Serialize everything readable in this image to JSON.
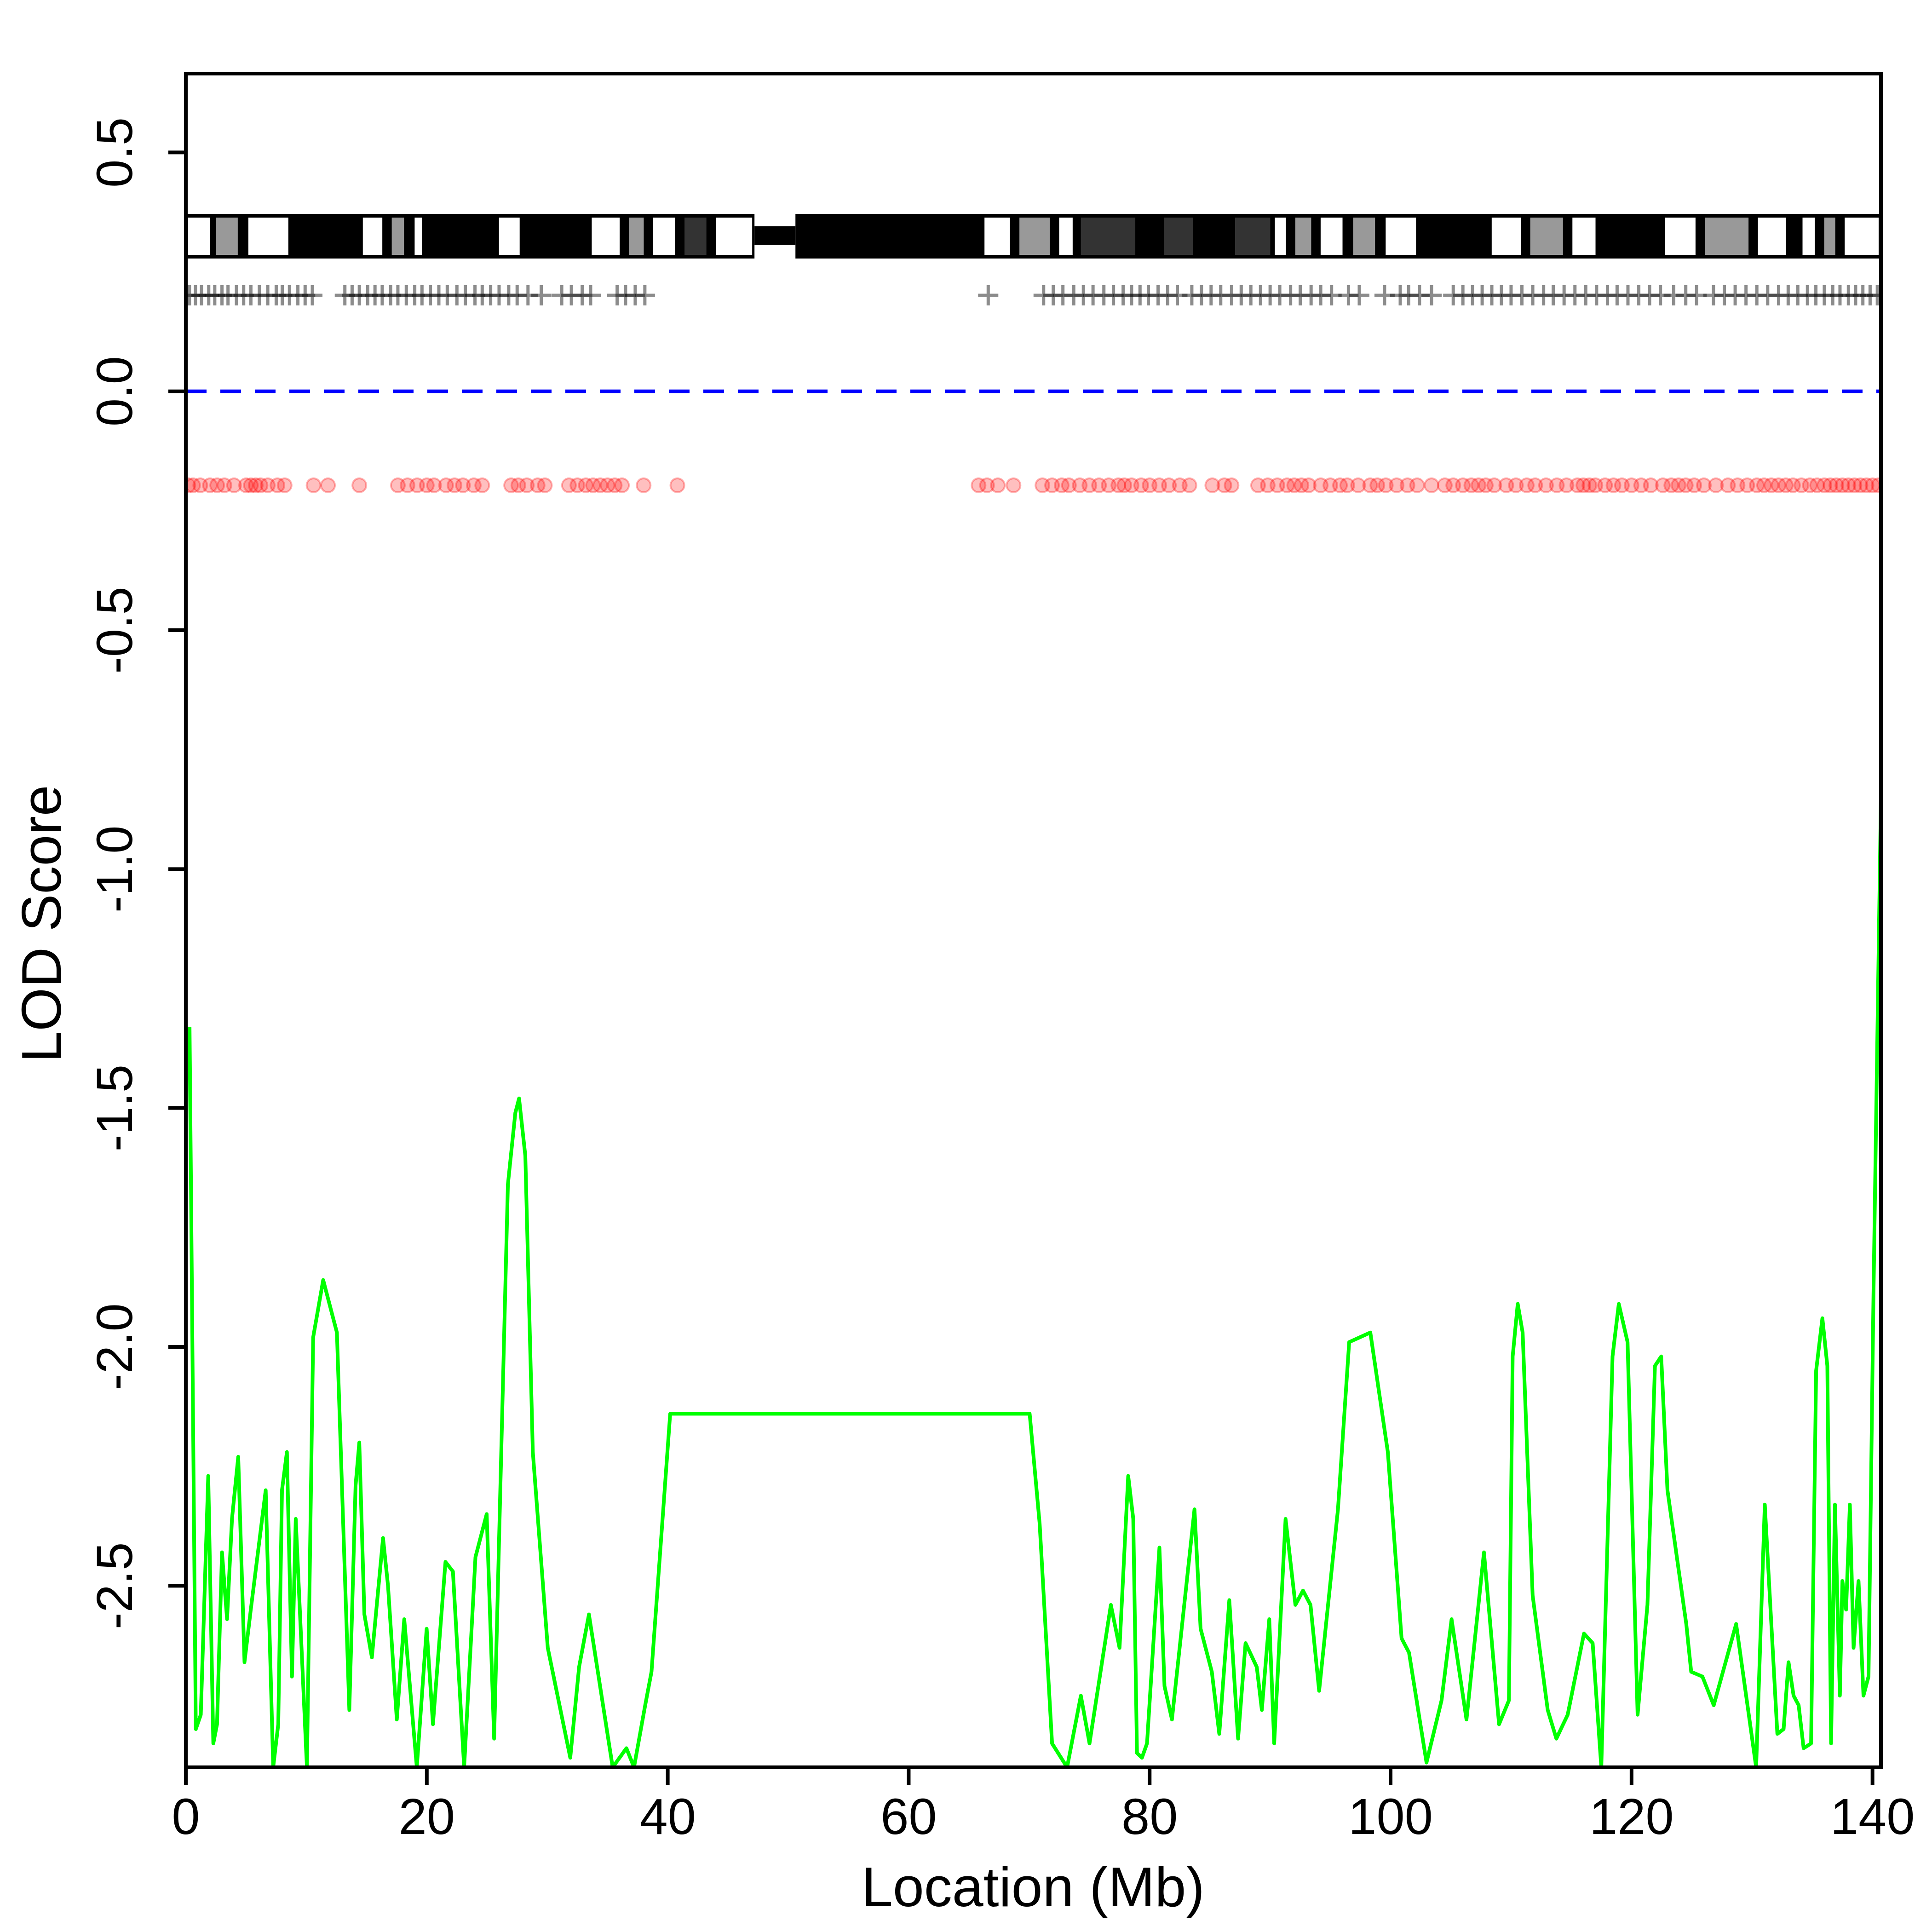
{
  "chart_data": {
    "type": "line",
    "xlabel": "Location (Mb)",
    "ylabel": "LOD Score",
    "xlim": [
      0,
      140.7
    ],
    "ylim": [
      -2.88,
      0.665
    ],
    "xticks": [
      0,
      20,
      40,
      60,
      80,
      100,
      120,
      140
    ],
    "yticks": [
      -2.5,
      {
        "value": -2,
        "label": "-2.0"
      },
      -1.5,
      {
        "value": -1,
        "label": "-1.0"
      },
      -0.5,
      {
        "value": 0,
        "label": "0.0"
      },
      0.5
    ],
    "hline": 0,
    "hline_color": "#0000ff",
    "x": [
      0.31,
      0.83,
      1.24,
      1.86,
      2.28,
      2.59,
      3.0,
      3.42,
      3.83,
      4.35,
      4.87,
      5.39,
      6.63,
      7.25,
      7.67,
      7.98,
      8.39,
      8.81,
      9.12,
      10.05,
      10.57,
      11.4,
      12.54,
      13.57,
      14.09,
      14.4,
      14.82,
      15.44,
      16.37,
      16.78,
      17.51,
      18.13,
      19.17,
      19.99,
      20.51,
      21.55,
      22.17,
      23.1,
      24.04,
      24.97,
      25.59,
      26.73,
      27.35,
      27.66,
      28.18,
      28.8,
      30.04,
      31.91,
      32.64,
      33.46,
      35.43,
      36.57,
      37.2,
      38.13,
      38.65,
      40.2,
      70.04,
      70.87,
      71.9,
      73.15,
      74.29,
      75.01,
      76.78,
      77.5,
      78.22,
      78.64,
      78.95,
      79.36,
      79.78,
      80.81,
      81.23,
      81.85,
      83.72,
      84.23,
      85.16,
      85.78,
      86.61,
      87.34,
      87.96,
      88.89,
      89.31,
      89.93,
      90.34,
      91.28,
      92.1,
      92.73,
      93.35,
      94.07,
      95.63,
      96.56,
      98.32,
      99.77,
      100.91,
      101.53,
      102.98,
      104.23,
      105.06,
      106.3,
      107.75,
      109.0,
      109.82,
      110.13,
      110.55,
      110.96,
      111.79,
      113.04,
      113.76,
      114.7,
      116.05,
      116.77,
      117.49,
      118.42,
      118.94,
      119.67,
      120.5,
      121.32,
      121.94,
      122.46,
      122.98,
      124.54,
      124.95,
      125.88,
      126.82,
      128.68,
      130.34,
      131.06,
      132.1,
      132.62,
      133.03,
      133.45,
      133.87,
      134.28,
      134.9,
      135.32,
      135.84,
      136.25,
      136.56,
      136.88,
      137.29,
      137.5,
      137.81,
      138.12,
      138.43,
      138.84,
      139.25,
      139.67,
      140.08,
      140.7
    ],
    "series": [
      {
        "name": "LOD",
        "color": "#00ff00",
        "values": [
          -1.33,
          -2.8,
          -2.77,
          -2.27,
          -2.83,
          -2.79,
          -2.43,
          -2.57,
          -2.36,
          -2.23,
          -2.66,
          -2.55,
          -2.3,
          -2.88,
          -2.79,
          -2.3,
          -2.22,
          -2.69,
          -2.36,
          -2.88,
          -1.98,
          -1.86,
          -1.97,
          -2.76,
          -2.29,
          -2.2,
          -2.56,
          -2.65,
          -2.4,
          -2.5,
          -2.78,
          -2.57,
          -2.88,
          -2.59,
          -2.79,
          -2.45,
          -2.47,
          -2.88,
          -2.44,
          -2.35,
          -2.82,
          -1.66,
          -1.51,
          -1.48,
          -1.6,
          -2.22,
          -2.63,
          -2.86,
          -2.67,
          -2.56,
          -2.88,
          -2.84,
          -2.88,
          -2.75,
          -2.68,
          -2.14,
          -2.14,
          -2.37,
          -2.83,
          -2.88,
          -2.73,
          -2.83,
          -2.54,
          -2.63,
          -2.27,
          -2.36,
          -2.85,
          -2.86,
          -2.83,
          -2.42,
          -2.71,
          -2.78,
          -2.34,
          -2.59,
          -2.68,
          -2.81,
          -2.53,
          -2.82,
          -2.62,
          -2.67,
          -2.76,
          -2.57,
          -2.83,
          -2.36,
          -2.54,
          -2.51,
          -2.54,
          -2.72,
          -2.34,
          -1.99,
          -1.97,
          -2.22,
          -2.61,
          -2.64,
          -2.87,
          -2.74,
          -2.57,
          -2.78,
          -2.43,
          -2.79,
          -2.74,
          -2.02,
          -1.91,
          -1.97,
          -2.52,
          -2.76,
          -2.82,
          -2.77,
          -2.6,
          -2.62,
          -2.88,
          -2.02,
          -1.91,
          -1.99,
          -2.77,
          -2.54,
          -2.04,
          -2.02,
          -2.3,
          -2.58,
          -2.68,
          -2.69,
          -2.75,
          -2.58,
          -2.88,
          -2.33,
          -2.81,
          -2.8,
          -2.66,
          -2.73,
          -2.75,
          -2.84,
          -2.83,
          -2.05,
          -1.94,
          -2.04,
          -2.83,
          -2.33,
          -2.73,
          -2.49,
          -2.55,
          -2.33,
          -2.63,
          -2.49,
          -2.73,
          -2.69,
          -1.89,
          -0.85
        ]
      }
    ],
    "centromere": [
      47.2,
      50.6
    ],
    "cytobands": [
      {
        "start": 0,
        "end": 2.2,
        "color": "#ffffff"
      },
      {
        "start": 2.3,
        "end": 4.5,
        "color": "#999999"
      },
      {
        "start": 5.0,
        "end": 8.7,
        "color": "#ffffff"
      },
      {
        "start": 8.7,
        "end": 14.5,
        "color": "#000000"
      },
      {
        "start": 14.5,
        "end": 16.5,
        "color": "#ffffff"
      },
      {
        "start": 16.9,
        "end": 18.3,
        "color": "#999999"
      },
      {
        "start": 18.8,
        "end": 19.8,
        "color": "#ffffff"
      },
      {
        "start": 19.8,
        "end": 25.8,
        "color": "#000000"
      },
      {
        "start": 25.8,
        "end": 27.9,
        "color": "#ffffff"
      },
      {
        "start": 27.9,
        "end": 33.5,
        "color": "#000000"
      },
      {
        "start": 33.5,
        "end": 36.2,
        "color": "#ffffff"
      },
      {
        "start": 36.6,
        "end": 38.2,
        "color": "#999999"
      },
      {
        "start": 38.6,
        "end": 40.8,
        "color": "#ffffff"
      },
      {
        "start": 41.2,
        "end": 43.4,
        "color": "#333333"
      },
      {
        "start": 43.8,
        "end": 47.2,
        "color": "#ffffff"
      },
      {
        "start": 50.6,
        "end": 66.1,
        "color": "#000000"
      },
      {
        "start": 66.1,
        "end": 68.6,
        "color": "#ffffff"
      },
      {
        "start": 69.0,
        "end": 71.9,
        "color": "#999999"
      },
      {
        "start": 72.3,
        "end": 73.8,
        "color": "#ffffff"
      },
      {
        "start": 74.1,
        "end": 79.0,
        "color": "#333333"
      },
      {
        "start": 79.0,
        "end": 81.0,
        "color": "#000000"
      },
      {
        "start": 81.0,
        "end": 83.8,
        "color": "#333333"
      },
      {
        "start": 83.8,
        "end": 86.9,
        "color": "#000000"
      },
      {
        "start": 86.9,
        "end": 90.2,
        "color": "#333333"
      },
      {
        "start": 90.2,
        "end": 91.5,
        "color": "#ffffff"
      },
      {
        "start": 91.9,
        "end": 93.6,
        "color": "#999999"
      },
      {
        "start": 94.0,
        "end": 96.2,
        "color": "#ffffff"
      },
      {
        "start": 96.7,
        "end": 98.9,
        "color": "#999999"
      },
      {
        "start": 99.4,
        "end": 102.3,
        "color": "#ffffff"
      },
      {
        "start": 102.3,
        "end": 108.2,
        "color": "#000000"
      },
      {
        "start": 108.2,
        "end": 111.0,
        "color": "#ffffff"
      },
      {
        "start": 111.4,
        "end": 114.5,
        "color": "#999999"
      },
      {
        "start": 114.9,
        "end": 117.2,
        "color": "#ffffff"
      },
      {
        "start": 117.2,
        "end": 122.6,
        "color": "#000000"
      },
      {
        "start": 122.6,
        "end": 125.5,
        "color": "#ffffff"
      },
      {
        "start": 125.9,
        "end": 129.9,
        "color": "#999999"
      },
      {
        "start": 130.3,
        "end": 133.0,
        "color": "#ffffff"
      },
      {
        "start": 134.0,
        "end": 135.4,
        "color": "#ffffff"
      },
      {
        "start": 135.8,
        "end": 137.1,
        "color": "#999999"
      },
      {
        "start": 137.5,
        "end": 140.7,
        "color": "#ffffff"
      }
    ],
    "markers": [
      0.3,
      0.8,
      1.3,
      1.9,
      2.4,
      3.0,
      3.5,
      4.2,
      4.8,
      5.4,
      6.1,
      6.8,
      7.5,
      8.0,
      8.6,
      9.3,
      9.9,
      10.5,
      13.2,
      13.8,
      14.4,
      15.1,
      15.7,
      16.3,
      17.0,
      17.6,
      18.3,
      19.0,
      19.6,
      20.3,
      21.0,
      21.7,
      22.5,
      23.2,
      24.0,
      24.6,
      25.3,
      26.0,
      26.8,
      27.5,
      28.4,
      29.5,
      31.2,
      32.0,
      32.9,
      33.6,
      35.8,
      36.5,
      37.3,
      38.1,
      66.6,
      71.2,
      72.0,
      72.8,
      73.7,
      74.5,
      75.3,
      76.2,
      77.0,
      77.8,
      78.5,
      79.2,
      79.9,
      80.7,
      81.5,
      82.3,
      83.5,
      84.3,
      85.1,
      85.9,
      86.8,
      87.6,
      88.4,
      89.2,
      90.0,
      90.8,
      91.7,
      92.5,
      93.4,
      94.2,
      95.1,
      96.5,
      97.4,
      99.5,
      100.8,
      101.5,
      102.4,
      103.4,
      105.2,
      106.0,
      106.8,
      107.6,
      108.4,
      109.2,
      110.0,
      110.9,
      111.8,
      112.7,
      113.5,
      114.4,
      115.3,
      116.2,
      117.1,
      118.0,
      118.8,
      119.7,
      120.6,
      121.5,
      122.4,
      123.5,
      124.5,
      125.4,
      126.8,
      127.7,
      128.6,
      129.5,
      130.4,
      131.3,
      132.2,
      133.0,
      133.8,
      134.6,
      135.3,
      136.0,
      136.7,
      137.3,
      138.0,
      138.6,
      139.2,
      139.8,
      140.4
    ],
    "snps": [
      0.2,
      0.6,
      1.2,
      2.0,
      2.6,
      3.2,
      4.0,
      5.0,
      5.4,
      5.8,
      6.2,
      6.8,
      7.6,
      8.2,
      10.6,
      11.8,
      14.4,
      17.6,
      18.4,
      19.2,
      20.0,
      20.6,
      21.6,
      22.3,
      23.0,
      23.9,
      24.6,
      27.0,
      27.6,
      28.3,
      29.2,
      29.8,
      31.8,
      32.5,
      33.2,
      33.8,
      34.4,
      35.0,
      35.6,
      36.2,
      38.0,
      40.8,
      65.8,
      66.5,
      67.4,
      68.7,
      71.1,
      71.9,
      72.7,
      73.3,
      74.2,
      75.0,
      75.8,
      76.6,
      77.4,
      77.9,
      78.5,
      79.3,
      80.0,
      80.8,
      81.6,
      82.5,
      83.3,
      85.2,
      86.2,
      86.8,
      89.0,
      89.8,
      90.6,
      91.4,
      92.0,
      92.6,
      93.2,
      94.2,
      95.0,
      95.8,
      96.4,
      97.3,
      98.3,
      98.9,
      99.6,
      100.5,
      101.4,
      102.2,
      103.4,
      104.5,
      105.2,
      106.0,
      106.7,
      107.3,
      107.9,
      108.6,
      109.6,
      110.4,
      111.3,
      112.0,
      112.9,
      113.8,
      114.6,
      115.5,
      116.0,
      116.5,
      117.0,
      117.8,
      118.5,
      119.2,
      120.0,
      120.8,
      121.6,
      122.6,
      123.3,
      123.9,
      124.5,
      125.2,
      126.0,
      127.0,
      128.0,
      128.8,
      129.6,
      130.4,
      131.0,
      131.6,
      132.2,
      132.8,
      133.4,
      134.1,
      134.8,
      135.4,
      136.0,
      136.5,
      137.0,
      137.5,
      138.0,
      138.5,
      139.0,
      139.5,
      140.0,
      140.5
    ],
    "snp_color": "#ff0000",
    "marker_color": "#000000"
  }
}
